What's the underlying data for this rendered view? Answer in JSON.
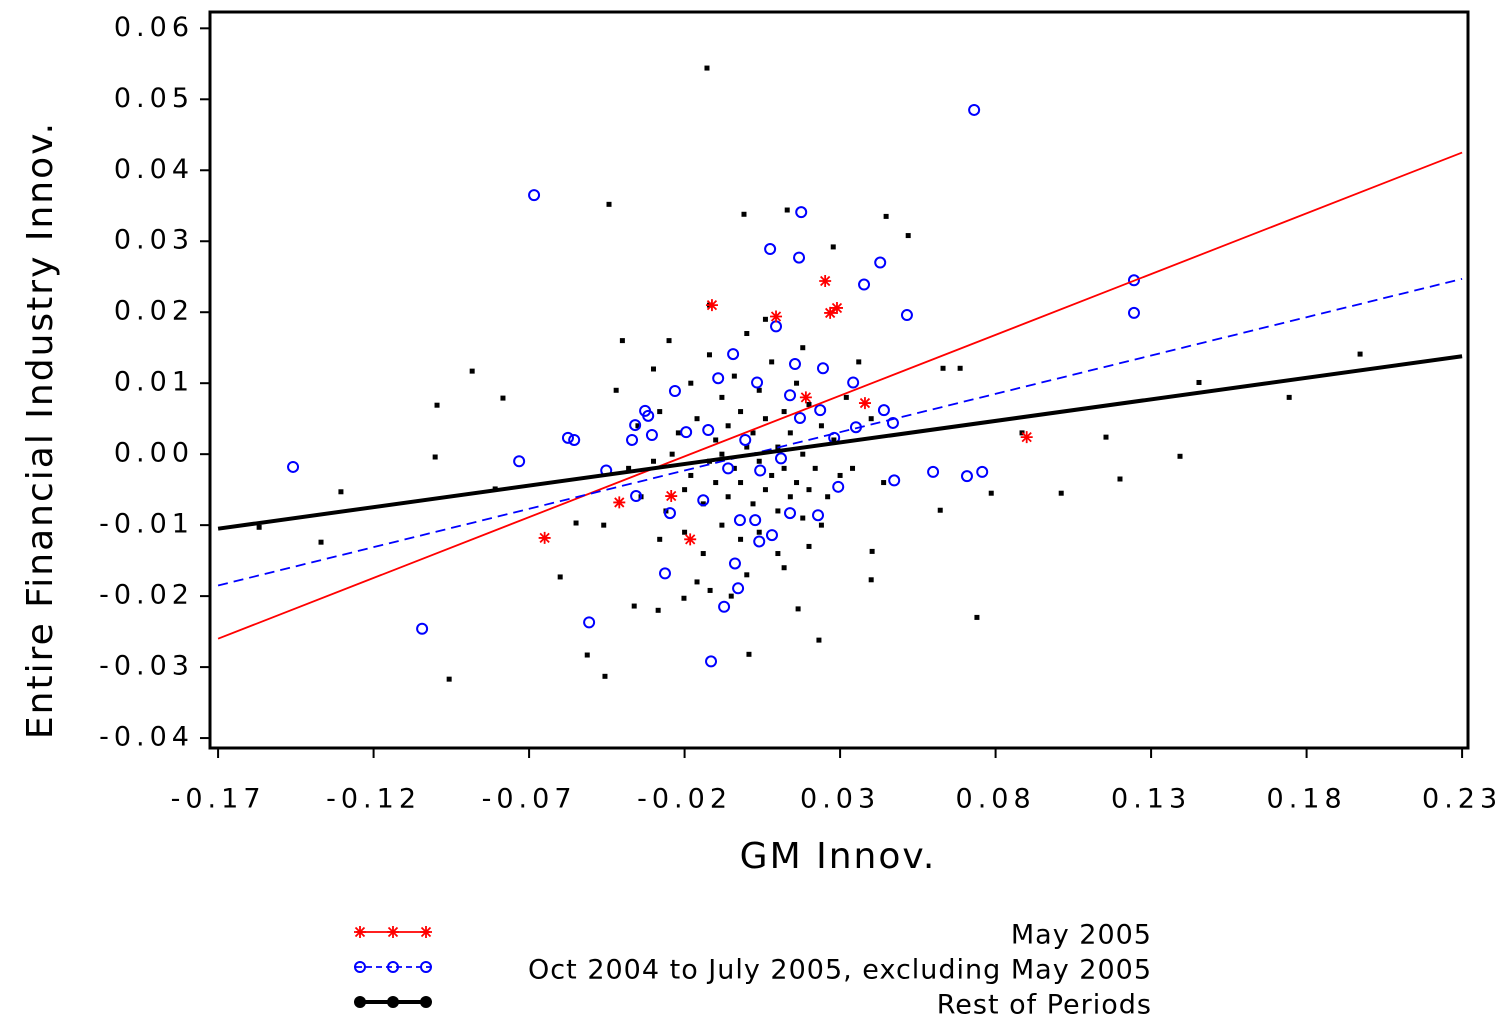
{
  "chart_data": {
    "type": "scatter",
    "x_label": "GM Innov.",
    "y_label": "Entire Financial Industry Innov.",
    "xlim": [
      -0.1726,
      0.2319
    ],
    "ylim": [
      -0.0414,
      0.0623
    ],
    "xticks": [
      -0.17,
      -0.12,
      -0.07,
      -0.02,
      0.03,
      0.08,
      0.13,
      0.18,
      0.23
    ],
    "yticks": [
      {
        "value": -0.04,
        "label": "-0.04"
      },
      {
        "value": -0.03,
        "label": "-0.03"
      },
      {
        "value": -0.02,
        "label": "-0.02"
      },
      {
        "value": -0.01,
        "label": "-0.01"
      },
      {
        "value": 0,
        "label": "0.00"
      },
      {
        "value": 0.01,
        "label": "0.01"
      },
      {
        "value": 0.02,
        "label": "0.02"
      },
      {
        "value": 0.03,
        "label": "0.03"
      },
      {
        "value": 0.04,
        "label": "0.04"
      },
      {
        "value": 0.05,
        "label": "0.05"
      },
      {
        "value": 0.06,
        "label": "0.06"
      }
    ],
    "legend_position": "bottom",
    "series": [
      {
        "name": "May 2005",
        "color": "#ff0000",
        "marker": "star",
        "line_style": "solid",
        "x": [
          -0.0112,
          0.0094,
          0.0252,
          0.0268,
          0.029,
          0.038,
          0.019,
          0.09,
          -0.065,
          -0.041,
          -0.0243,
          -0.0182
        ],
        "y": [
          0.021,
          0.0194,
          0.0244,
          0.0199,
          0.0206,
          0.0072,
          0.008,
          0.0024,
          -0.0118,
          -0.0068,
          -0.0059,
          -0.012
        ],
        "fit": {
          "x": [
            -0.17,
            0.23
          ],
          "y": [
            -0.026,
            0.0425
          ]
        }
      },
      {
        "name": "Oct 2004 to July 2005, excluding May 2005",
        "color": "#0000ff",
        "marker": "circle",
        "line_style": "dashed",
        "x": [
          -0.1459,
          -0.0684,
          0.0731,
          0.1245,
          0.1245,
          -0.1044,
          -0.0732,
          -0.0575,
          -0.0555,
          -0.0507,
          -0.0115,
          -0.0073,
          -0.0028,
          0.0075,
          0.0168,
          0.0175,
          0.0429,
          0.0377,
          0.0515,
          0.0094,
          -0.0044,
          -0.0092,
          0.0245,
          0.0155,
          0.0342,
          -0.0327,
          -0.0317,
          -0.0359,
          -0.0305,
          -0.0369,
          -0.0452,
          -0.0356,
          -0.0247,
          -0.0263,
          -0.0231,
          -0.014,
          -0.0038,
          0.004,
          0.0081,
          0.0139,
          0.0229,
          0.0294,
          0.0441,
          0.047,
          0.0474,
          0.0599,
          0.0708,
          0.0757,
          0.0351,
          0.0281,
          0.011,
          -0.0005,
          0.0027,
          -0.0022,
          -0.006,
          -0.0124,
          0.0171,
          0.0236,
          0.0043,
          0.0139,
          0.0033,
          -0.0195
        ],
        "y": [
          -0.0018,
          0.0365,
          0.0485,
          0.0245,
          0.0199,
          -0.0246,
          -0.001,
          0.0023,
          0.002,
          -0.0237,
          -0.0292,
          -0.0215,
          -0.0189,
          0.0289,
          0.0277,
          0.0341,
          0.027,
          0.0239,
          0.0196,
          0.018,
          0.0141,
          0.0107,
          0.0121,
          0.0127,
          0.0101,
          0.0061,
          0.0054,
          0.0041,
          0.0027,
          0.002,
          -0.0023,
          -0.0059,
          -0.0083,
          -0.0168,
          0.0089,
          -0.0065,
          -0.0154,
          -0.0123,
          -0.0114,
          -0.0083,
          -0.0086,
          -0.0046,
          0.0062,
          0.0044,
          -0.0037,
          -0.0025,
          -0.0031,
          -0.0025,
          0.0038,
          0.0023,
          -0.0006,
          0.002,
          -0.0093,
          -0.0093,
          -0.002,
          0.0034,
          0.0051,
          0.0062,
          -0.0023,
          0.0083,
          0.0101,
          0.0031
        ],
        "fit": {
          "x": [
            -0.17,
            0.23
          ],
          "y": [
            -0.0185,
            0.0247
          ]
        }
      },
      {
        "name": "Rest of Periods",
        "color": "#000000",
        "marker": "square",
        "line_style": "thick",
        "x": [
          -0.0128,
          -0.0957,
          0.1972,
          0.1454,
          0.1744,
          0.1393,
          0.12,
          0.1155,
          0.1011,
          0.0885,
          0.074,
          0.0786,
          -0.1568,
          -0.1369,
          -0.1305,
          -0.1002,
          -0.0996,
          -0.0883,
          -0.0784,
          -0.0809,
          -0.0443,
          -0.0456,
          -0.0513,
          -0.06,
          -0.0549,
          -0.0009,
          0.013,
          0.0448,
          0.0519,
          0.0278,
          0.0007,
          0.0232,
          0.04,
          0.0403,
          0.0622,
          0.0631,
          0.0686,
          0.0165,
          -0.0362,
          -0.0285,
          -0.0202,
          -0.0118,
          -0.03,
          -0.025,
          -0.018,
          -0.012,
          -0.008,
          -0.004,
          0,
          0.004,
          0.008,
          0.012,
          0.016,
          0.02,
          0.024,
          0.028,
          -0.035,
          -0.028,
          -0.022,
          -0.016,
          -0.01,
          -0.006,
          -0.002,
          0.002,
          0.006,
          0.01,
          0.014,
          0.018,
          0.022,
          0.03,
          -0.038,
          -0.03,
          -0.024,
          -0.018,
          -0.012,
          -0.008,
          -0.004,
          0,
          0.004,
          0.008,
          0.012,
          0.016,
          0.02,
          0.026,
          0.034,
          -0.034,
          -0.026,
          -0.02,
          -0.014,
          -0.01,
          -0.006,
          -0.002,
          0.002,
          0.006,
          0.01,
          0.014,
          0.018,
          0.024,
          -0.028,
          -0.02,
          -0.014,
          -0.008,
          -0.002,
          0.004,
          0.01,
          -0.016,
          0,
          0.012,
          -0.042,
          0.04,
          0.044,
          -0.046,
          0.036,
          -0.04,
          0.006,
          -0.012,
          0.018,
          -0.005,
          0.02,
          0.032
        ],
        "y": [
          0.0544,
          -0.0317,
          0.0141,
          0.0101,
          0.008,
          -0.0003,
          -0.0035,
          0.0024,
          -0.0055,
          0.003,
          -0.023,
          -0.0055,
          -0.0103,
          -0.0124,
          -0.0053,
          -0.0004,
          0.0069,
          0.0117,
          0.0079,
          -0.0049,
          0.0352,
          -0.0313,
          -0.0283,
          -0.0173,
          -0.0097,
          0.0338,
          0.0344,
          0.0335,
          0.0308,
          0.0292,
          -0.0282,
          -0.0262,
          -0.0177,
          -0.0137,
          -0.0079,
          0.0121,
          0.0121,
          -0.0218,
          -0.0214,
          -0.022,
          -0.0203,
          -0.0192,
          0.012,
          0.016,
          0.01,
          0.014,
          0.008,
          0.011,
          0.017,
          0.009,
          0.013,
          0.006,
          0.01,
          0.007,
          0.004,
          0.002,
          0.004,
          0.006,
          0.003,
          0.005,
          0.002,
          0.004,
          0.006,
          0.003,
          0.005,
          0.001,
          0.003,
          0,
          -0.002,
          -0.003,
          -0.002,
          -0.001,
          0,
          -0.003,
          -0.001,
          0,
          -0.002,
          0.001,
          -0.001,
          -0.003,
          -0.002,
          -0.004,
          -0.005,
          -0.006,
          -0.002,
          -0.006,
          -0.008,
          -0.005,
          -0.007,
          -0.004,
          -0.006,
          -0.004,
          -0.007,
          -0.005,
          -0.008,
          -0.006,
          -0.009,
          -0.01,
          -0.012,
          -0.011,
          -0.014,
          -0.01,
          -0.012,
          -0.011,
          -0.014,
          -0.018,
          -0.017,
          -0.016,
          0.009,
          0.005,
          -0.004,
          -0.01,
          0.013,
          0.016,
          0.019,
          0.021,
          0.015,
          -0.02,
          -0.013,
          0.008
        ],
        "fit": {
          "x": [
            -0.17,
            0.23
          ],
          "y": [
            -0.0105,
            0.0138
          ]
        }
      }
    ]
  }
}
